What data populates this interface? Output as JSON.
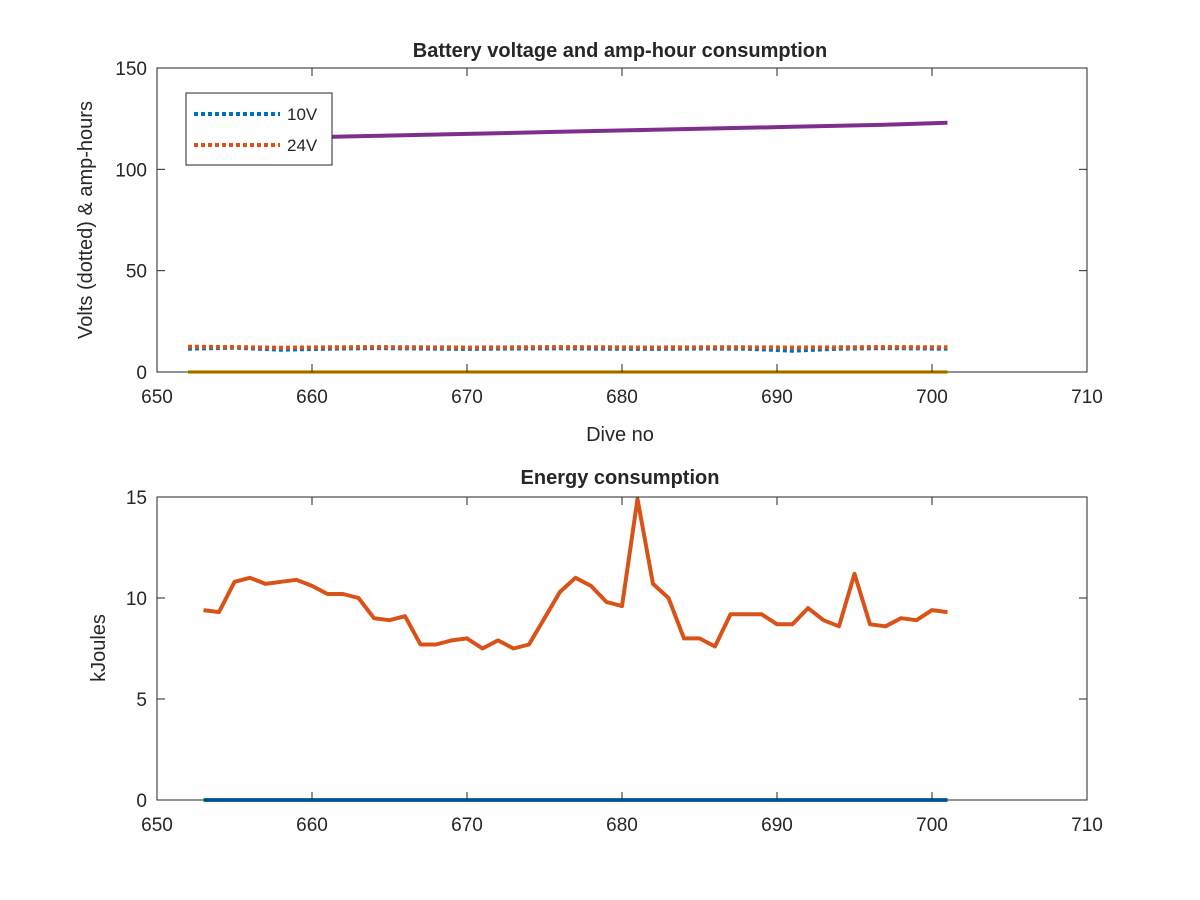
{
  "colors": {
    "blue": "#0072BD",
    "orange": "#D95319",
    "yellow": "#EDB120",
    "purple": "#7E2F8E",
    "axis": "#262626"
  },
  "chart_data": [
    {
      "type": "line",
      "title": "Battery voltage and amp-hour consumption",
      "xlabel": "Dive no",
      "ylabel": "Volts (dotted) & amp-hours",
      "xlim": [
        650,
        710
      ],
      "ylim": [
        0,
        150
      ],
      "xticks": [
        "650",
        "660",
        "670",
        "680",
        "690",
        "700",
        "710"
      ],
      "yticks": [
        "0",
        "50",
        "100",
        "150"
      ],
      "grid": false,
      "legend_position": "top-left",
      "x": [
        652,
        655,
        658,
        661,
        664,
        667,
        670,
        673,
        676,
        679,
        682,
        685,
        688,
        691,
        694,
        697,
        701
      ],
      "series": [
        {
          "name": "10V",
          "style": "dotted",
          "color": "blue",
          "values": [
            11.5,
            12.0,
            11.0,
            11.5,
            11.8,
            11.6,
            11.4,
            11.6,
            11.7,
            11.5,
            11.4,
            11.6,
            11.5,
            10.5,
            11.5,
            11.8,
            11.5
          ]
        },
        {
          "name": "24V",
          "style": "dotted",
          "color": "orange",
          "values": [
            12.5,
            12.3,
            12.0,
            12.2,
            12.3,
            12.2,
            12.1,
            12.2,
            12.3,
            12.2,
            12.1,
            12.2,
            12.2,
            12.1,
            12.2,
            12.3,
            12.2
          ]
        },
        {
          "name": "",
          "style": "solid",
          "color": "yellow",
          "values": [
            0,
            0,
            0,
            0,
            0,
            0,
            0,
            0,
            0,
            0,
            0,
            0,
            0,
            0,
            0,
            0,
            0
          ]
        },
        {
          "name": "",
          "style": "solid",
          "color": "purple",
          "values": [
            114.5,
            115.0,
            115.5,
            116.0,
            116.5,
            117.0,
            117.5,
            118.0,
            118.5,
            119.0,
            119.5,
            120.0,
            120.5,
            121.0,
            121.5,
            122.0,
            123.0
          ]
        }
      ]
    },
    {
      "type": "line",
      "title": "Energy consumption",
      "xlabel": "",
      "ylabel": "kJoules",
      "xlim": [
        650,
        710
      ],
      "ylim": [
        0,
        15
      ],
      "xticks": [
        "650",
        "660",
        "670",
        "680",
        "690",
        "700",
        "710"
      ],
      "yticks": [
        "0",
        "5",
        "10",
        "15"
      ],
      "grid": false,
      "x": [
        653,
        654,
        655,
        656,
        657,
        658,
        659,
        660,
        661,
        662,
        663,
        664,
        665,
        666,
        667,
        668,
        669,
        670,
        671,
        672,
        673,
        674,
        675,
        676,
        677,
        678,
        679,
        680,
        681,
        682,
        683,
        684,
        685,
        686,
        687,
        688,
        689,
        690,
        691,
        692,
        693,
        694,
        695,
        696,
        697,
        698,
        699,
        700,
        701
      ],
      "series": [
        {
          "name": "",
          "style": "solid",
          "color": "orange",
          "values": [
            9.4,
            9.3,
            10.8,
            11.0,
            10.7,
            10.8,
            10.9,
            10.6,
            10.2,
            10.2,
            10.0,
            9.0,
            8.9,
            9.1,
            7.7,
            7.7,
            7.9,
            8.0,
            7.5,
            7.9,
            7.5,
            7.7,
            9.0,
            10.3,
            11.0,
            10.6,
            9.8,
            9.6,
            14.9,
            10.7,
            10.0,
            8.0,
            8.0,
            7.6,
            9.2,
            9.2,
            9.2,
            8.7,
            8.7,
            9.5,
            8.9,
            8.6,
            11.2,
            8.7,
            8.6,
            9.0,
            8.9,
            9.4,
            9.3
          ]
        },
        {
          "name": "",
          "style": "solid",
          "color": "blue",
          "values": [
            0,
            0,
            0,
            0,
            0,
            0,
            0,
            0,
            0,
            0,
            0,
            0,
            0,
            0,
            0,
            0,
            0,
            0,
            0,
            0,
            0,
            0,
            0,
            0,
            0,
            0,
            0,
            0,
            0,
            0,
            0,
            0,
            0,
            0,
            0,
            0,
            0,
            0,
            0,
            0,
            0,
            0,
            0,
            0,
            0,
            0,
            0,
            0,
            0
          ]
        }
      ]
    }
  ]
}
